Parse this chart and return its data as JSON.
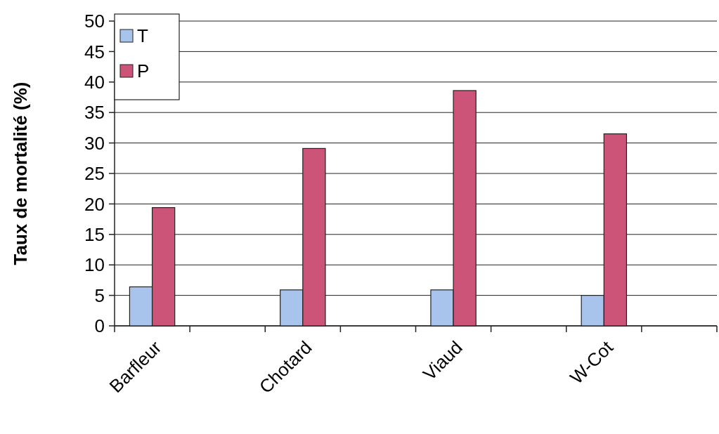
{
  "chart_data": {
    "type": "bar",
    "ylabel": "Taux de mortalité (%)",
    "categories": [
      "Barfleur",
      null,
      "Chotard",
      null,
      "Viaud",
      null,
      "W-Cot",
      null
    ],
    "series": [
      {
        "name": "T",
        "color": "#a9c4ec",
        "values": [
          6.4,
          null,
          5.9,
          null,
          5.9,
          null,
          5.0,
          null
        ]
      },
      {
        "name": "P",
        "color": "#cc5478",
        "values": [
          19.4,
          null,
          29.1,
          null,
          38.6,
          null,
          31.5,
          null
        ]
      }
    ],
    "ylim": [
      0,
      50
    ],
    "yticks": [
      0,
      5,
      10,
      15,
      20,
      25,
      30,
      35,
      40,
      45,
      50
    ],
    "grid": "y",
    "legend": "top left"
  }
}
